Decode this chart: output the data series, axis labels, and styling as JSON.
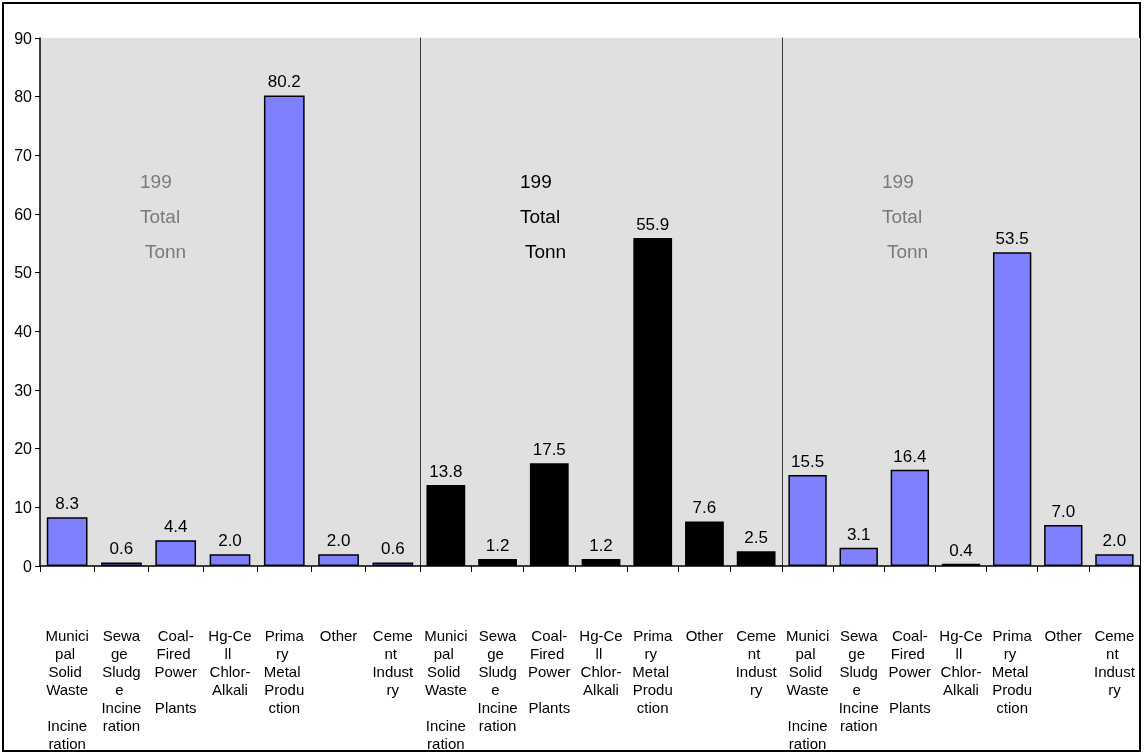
{
  "chart_data": [
    {
      "type": "bar",
      "categories": [
        "Municipal Solid Waste Incineration",
        "Sewage Sludge Incineration",
        "Coal-Fired Power Plants",
        "Hg-Cell Chlor-Alkali",
        "Primary Metal Production",
        "Other",
        "Cement Industry"
      ],
      "values": [
        8.3,
        0.6,
        4.4,
        2.0,
        80.2,
        2.0,
        0.6
      ],
      "value_labels": [
        "8.3",
        "0.6",
        "4.4",
        "2.0",
        "80.2",
        "2.0",
        "0.6"
      ],
      "color": "#8080ff",
      "ylim": [
        0,
        90
      ],
      "yticks": [
        0,
        10,
        20,
        30,
        40,
        50,
        60,
        70,
        80,
        90
      ],
      "annotations": [
        "199 Total Tonn"
      ],
      "grid": false
    },
    {
      "type": "bar",
      "categories": [
        "Municipal Solid Waste Incineration",
        "Sewage Sludge Incineration",
        "Coal-Fired Power Plants",
        "Hg-Cell Chlor-Alkali",
        "Primary Metal Production",
        "Other",
        "Cement Industry"
      ],
      "values": [
        13.8,
        1.2,
        17.5,
        1.2,
        55.9,
        7.6,
        2.5
      ],
      "value_labels": [
        "13.8",
        "1.2",
        "17.5",
        "1.2",
        "55.9",
        "7.6",
        "2.5"
      ],
      "color": "#000000",
      "ylim": [
        0,
        90
      ],
      "yticks": [
        0,
        10,
        20,
        30,
        40,
        50,
        60,
        70,
        80,
        90
      ],
      "annotations": [
        "199 Total Tonn"
      ],
      "tick_labels": "x",
      "grid": false
    },
    {
      "type": "bar",
      "categories": [
        "Municipal Solid Waste Incineration",
        "Sewage Sludge Incineration",
        "Coal-Fired Power Plants",
        "Hg-Cell Chlor-Alkali",
        "Primary Metal Production",
        "Other",
        "Cement Industry"
      ],
      "values": [
        15.5,
        3.1,
        16.4,
        0.4,
        53.5,
        7.0,
        2.0
      ],
      "value_labels": [
        "15.5",
        "3.1",
        "16.4",
        "0.4",
        "53.5",
        "7.0",
        "2.0"
      ],
      "color": "#8080ff",
      "ylim": [
        0,
        90
      ],
      "yticks": [
        0,
        10,
        20,
        30,
        40,
        50,
        60,
        70,
        80,
        90
      ],
      "annotations": [
        "199 Total Tonn"
      ],
      "tick_labels": "x",
      "grid": false
    }
  ]
}
